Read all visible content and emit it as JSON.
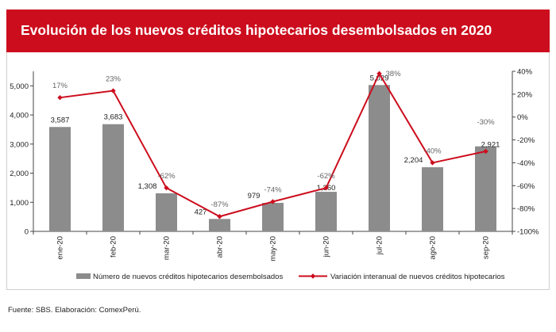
{
  "title": "Evolución de los nuevos créditos hipotecarios desembolsados en 2020",
  "source": "Fuente: SBS. Elaboración: ComexPerú.",
  "chart_data": {
    "type": "bar+line",
    "categories": [
      "ene-20",
      "feb-20",
      "mar-20",
      "abr-20",
      "may-20",
      "jun-20",
      "jul-20",
      "ago-20",
      "sep-20"
    ],
    "series": [
      {
        "name": "Número de nuevos créditos hipotecarios desembolsados",
        "kind": "bar",
        "axis": "left",
        "color": "#8c8c8c",
        "values": [
          3587,
          3683,
          1308,
          427,
          979,
          1360,
          5029,
          2204,
          2921
        ],
        "labels": [
          "3,587",
          "3,683",
          "1,308",
          "427",
          "979",
          "1,360",
          "5,029",
          "2,204",
          "2,921"
        ]
      },
      {
        "name": "Variación interanual de nuevos créditos hipotecarios",
        "kind": "line",
        "axis": "right",
        "color": "#cc0d1d",
        "values": [
          17,
          23,
          -62,
          -87,
          -74,
          -62,
          38,
          -40,
          -30
        ],
        "labels": [
          "17%",
          "23%",
          "-62%",
          "-87%",
          "-74%",
          "-62%",
          "38%",
          "-40%",
          "-30%"
        ]
      }
    ],
    "y_left": {
      "min": 0,
      "max": 5500,
      "ticks": [
        0,
        1000,
        2000,
        3000,
        4000,
        5000
      ],
      "tick_labels": [
        "0",
        "1,000",
        "2,000",
        "3,000",
        "4,000",
        "5,000"
      ]
    },
    "y_right": {
      "min": -100,
      "max": 40,
      "ticks": [
        -100,
        -80,
        -60,
        -40,
        -20,
        0,
        20,
        40
      ],
      "tick_labels": [
        "-100%",
        "-80%",
        "-60%",
        "-40%",
        "-20%",
        "0%",
        "20%",
        "40%"
      ]
    },
    "grid": false,
    "legend_position": "bottom"
  }
}
